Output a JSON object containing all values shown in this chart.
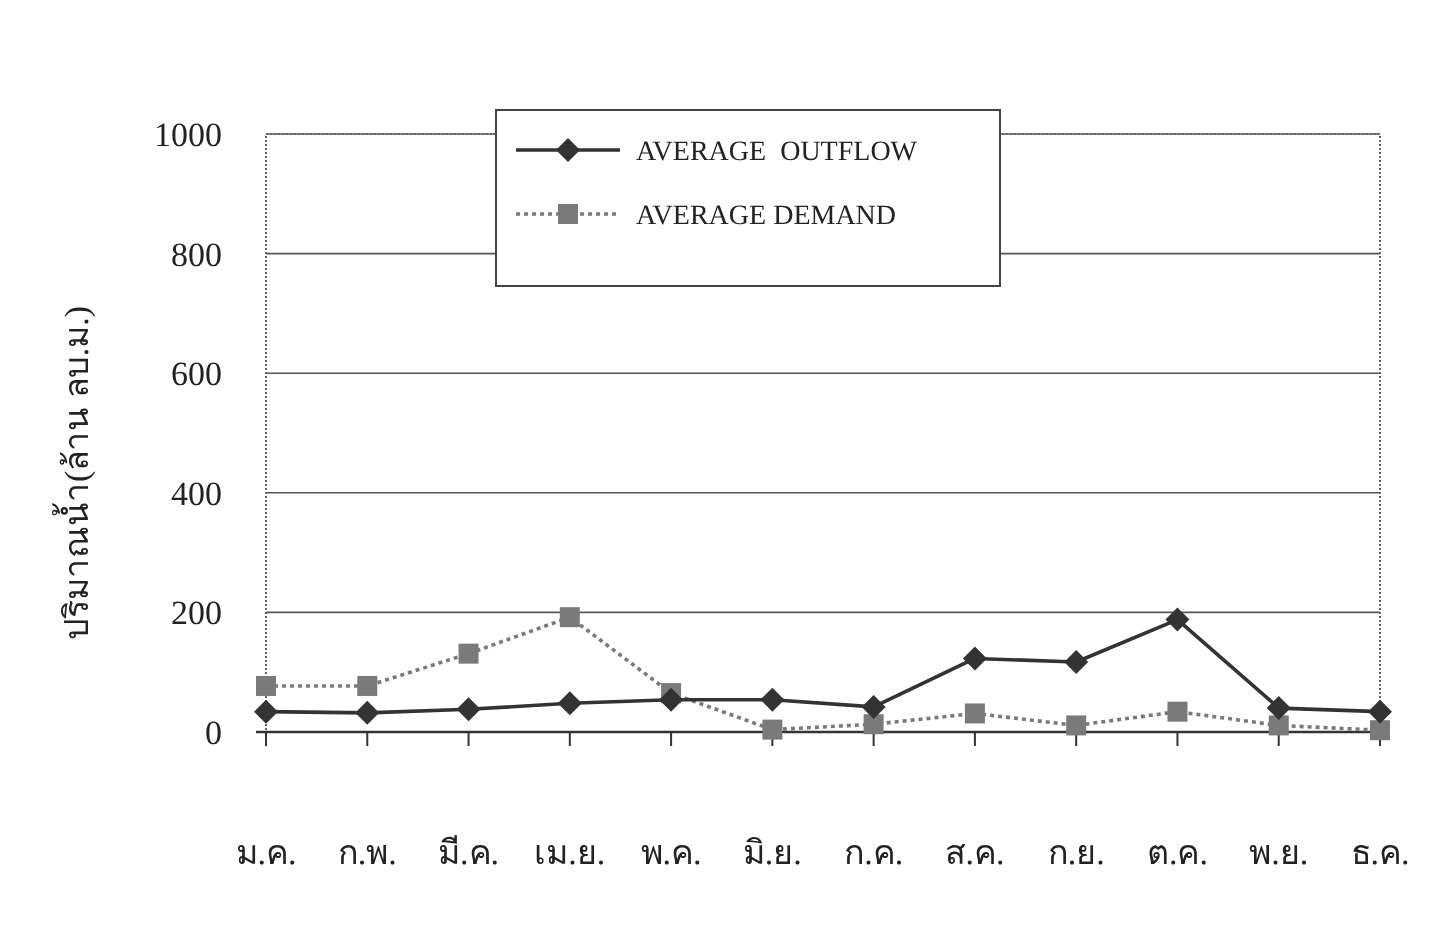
{
  "chart_data": {
    "type": "line",
    "ylabel": "ปริมาณน้ำ(ล้าน ลบ.ม.)",
    "categories": [
      "ม.ค.",
      "ก.พ.",
      "มี.ค.",
      "เม.ย.",
      "พ.ค.",
      "มิ.ย.",
      "ก.ค.",
      "ส.ค.",
      "ก.ย.",
      "ต.ค.",
      "พ.ย.",
      "ธ.ค."
    ],
    "series": [
      {
        "name": "AVERAGE  OUTFLOW",
        "color": "#333333",
        "marker": "diamond",
        "line_style": "solid",
        "values": [
          34,
          32,
          38,
          48,
          54,
          54,
          42,
          123,
          117,
          188,
          40,
          34
        ]
      },
      {
        "name": "AVERAGE DEMAND",
        "color": "#7a7a7a",
        "marker": "square",
        "line_style": "dotted",
        "values": [
          77,
          77,
          131,
          192,
          65,
          4,
          13,
          31,
          11,
          34,
          11,
          3
        ]
      }
    ],
    "ylim": [
      0,
      1000
    ],
    "yticks": [
      0,
      200,
      400,
      600,
      800,
      1000
    ],
    "grid": "y",
    "legend": "top"
  }
}
